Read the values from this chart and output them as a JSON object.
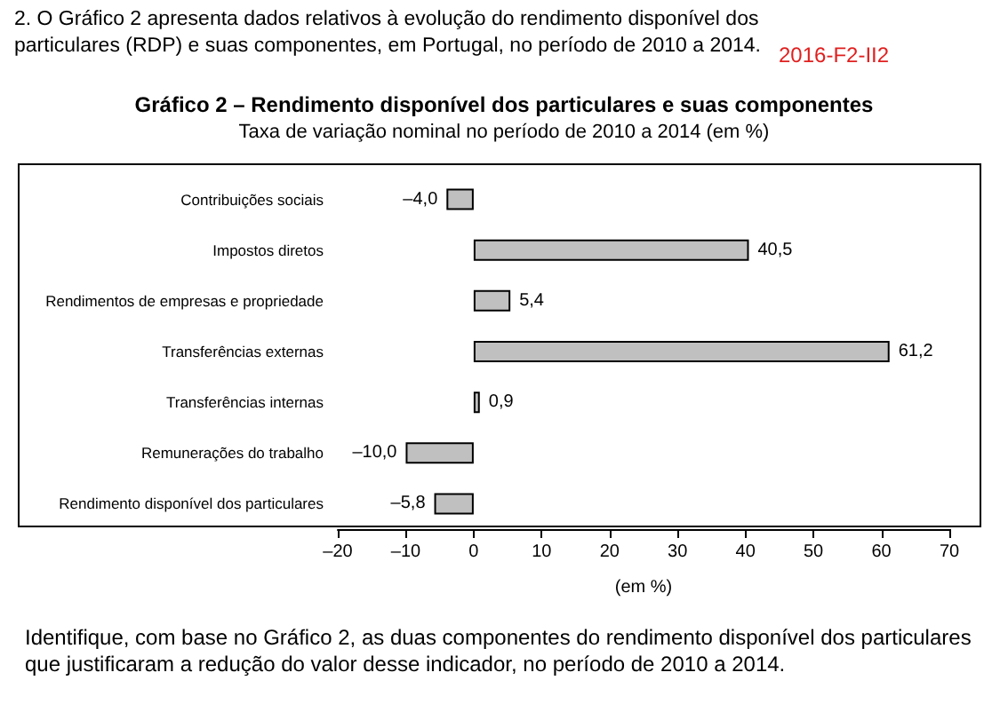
{
  "chart_data": {
    "type": "bar",
    "orientation": "horizontal",
    "title": "Gráfico 2 – Rendimento disponível dos particulares e suas componentes",
    "subtitle": "Taxa de variação nominal no período de 2010 a 2014 (em %)",
    "xlabel": "(em %)",
    "categories": [
      "Contribuições sociais",
      "Impostos diretos",
      "Rendimentos de empresas e propriedade",
      "Transferências externas",
      "Transferências internas",
      "Remunerações do trabalho",
      "Rendimento disponível dos particulares"
    ],
    "values": [
      -4.0,
      40.5,
      5.4,
      61.2,
      0.9,
      -10.0,
      -5.8
    ],
    "value_labels": [
      "–4,0",
      "40,5",
      "5,4",
      "61,2",
      "0,9",
      "–10,0",
      "–5,8"
    ],
    "color": "#c0c0c0",
    "xlim": [
      -20,
      70
    ],
    "xticks": [
      {
        "value": -20,
        "label": "–20"
      },
      {
        "value": -10,
        "label": "–10"
      },
      0,
      10,
      20,
      30,
      40,
      50,
      60,
      70
    ],
    "grid": false,
    "annotations": [
      "2. O Gráfico 2 apresenta dados relativos à evolução do rendimento disponível dos particulares (RDP) e suas componentes, em Portugal, no período de 2010 a 2014.",
      "2016-F2-II2",
      "Identifique, com base no Gráfico 2, as duas componentes do rendimento disponível dos particulares que justificaram a redução do valor desse indicador, no período de 2010 a 2014."
    ]
  }
}
